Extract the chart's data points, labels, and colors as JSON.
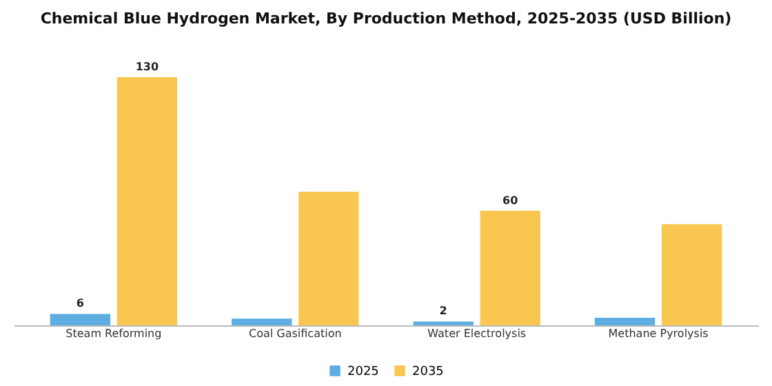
{
  "chart_data": {
    "type": "bar",
    "title": "Chemical Blue Hydrogen Market, By Production Method, 2025-2035 (USD Billion)",
    "categories": [
      "Steam Reforming",
      "Coal Gasification",
      "Water Electrolysis",
      "Methane Pyrolysis"
    ],
    "series": [
      {
        "name": "2025",
        "color": "#5dade2",
        "values": [
          6,
          3.5,
          2,
          4
        ],
        "value_labels": [
          "6",
          null,
          "2",
          null
        ]
      },
      {
        "name": "2035",
        "color": "#f9c74f",
        "values": [
          130,
          70,
          60,
          53
        ],
        "value_labels": [
          "130",
          null,
          "60",
          null
        ]
      }
    ],
    "legend": "bottom",
    "tick_labels": "x"
  }
}
